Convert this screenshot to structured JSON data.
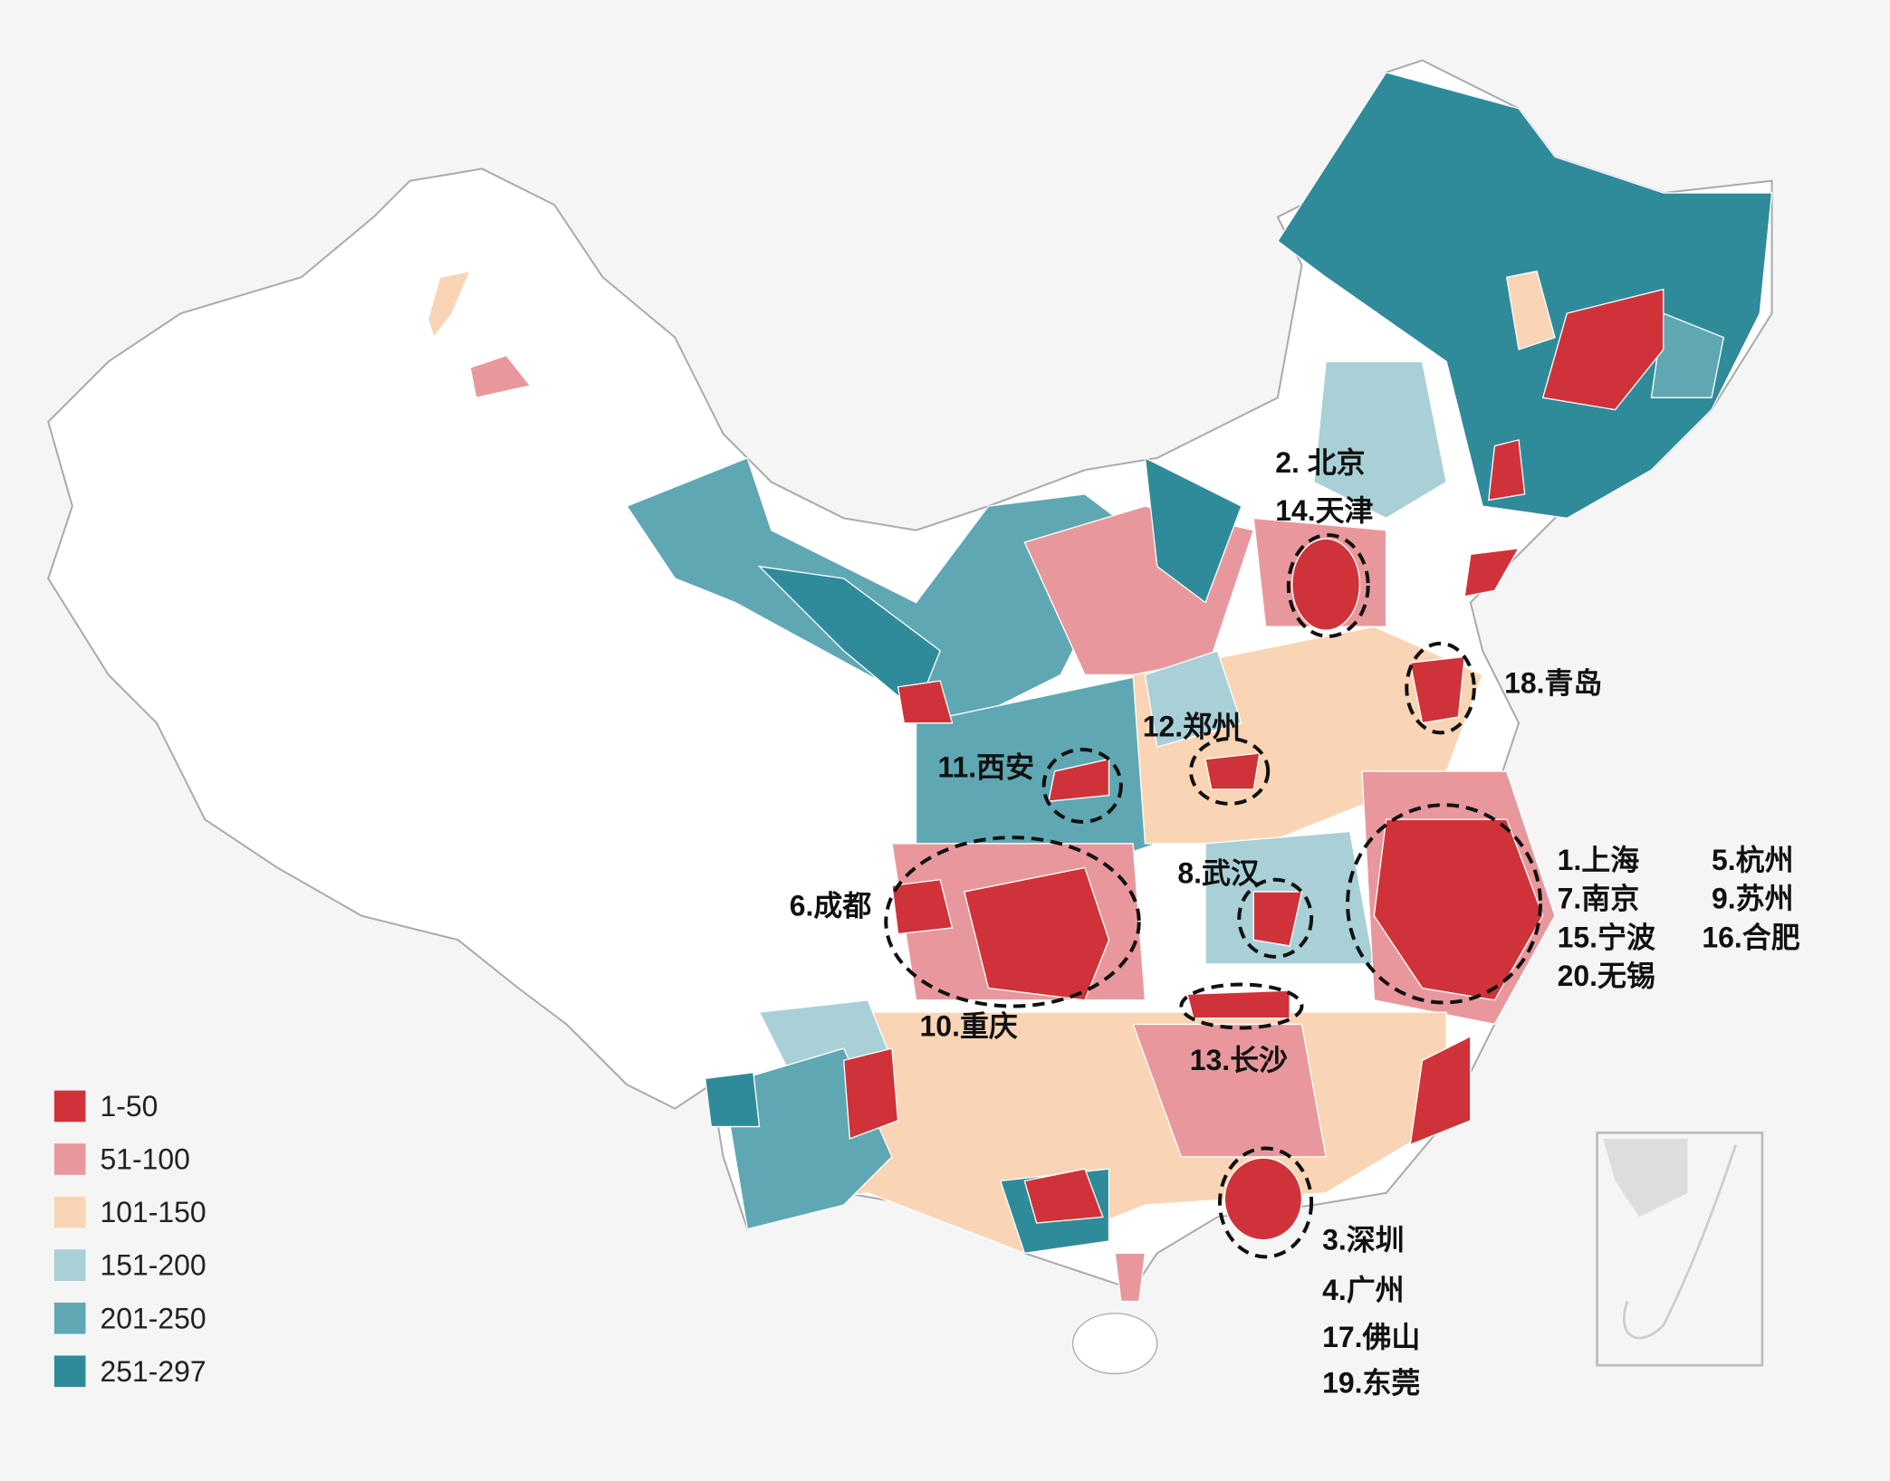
{
  "legend": {
    "items": [
      {
        "label": "1-50",
        "color": "#cf3339"
      },
      {
        "label": "51-100",
        "color": "#e8989c"
      },
      {
        "label": "101-150",
        "color": "#f9d5b5"
      },
      {
        "label": "151-200",
        "color": "#a8d0d6"
      },
      {
        "label": "201-250",
        "color": "#5fa8b3"
      },
      {
        "label": "251-297",
        "color": "#2f8b9a"
      }
    ]
  },
  "city_labels": [
    "2. 北京",
    "14.天津",
    "18.青岛",
    "12.郑州",
    "11.西安",
    "6.成都",
    "8.武汉",
    "10.重庆",
    "13.长沙",
    "1.上海",
    "7.南京",
    "15.宁波",
    "20.无锡",
    "5.杭州",
    "9.苏州",
    "16.合肥",
    "3.深圳",
    "4.广州",
    "17.佛山",
    "19.东莞"
  ]
}
